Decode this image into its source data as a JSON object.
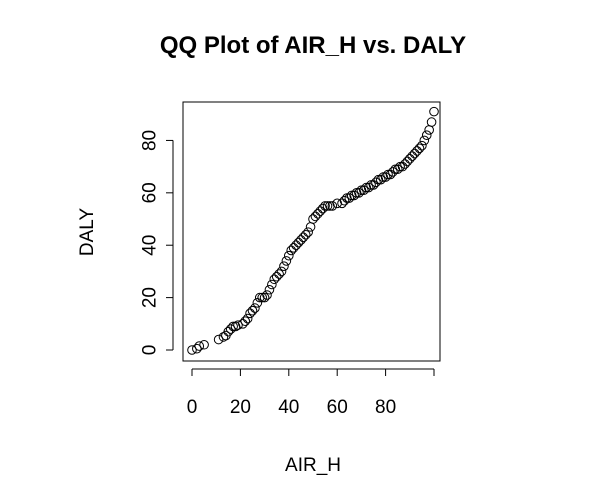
{
  "chart_data": {
    "type": "scatter",
    "title": "QQ Plot of AIR_H vs. DALY",
    "xlabel": "AIR_H",
    "ylabel": "DALY",
    "xlim": [
      0,
      100
    ],
    "ylim": [
      0,
      92
    ],
    "xticks": [
      0,
      20,
      40,
      60,
      80
    ],
    "yticks": [
      0,
      20,
      40,
      60,
      80
    ],
    "marker": "open-circle",
    "grid": false,
    "series": [
      {
        "x": [
          0,
          2,
          3,
          5,
          11,
          13,
          14,
          15,
          16,
          17,
          18,
          19,
          21,
          22,
          23,
          24,
          25,
          26,
          27,
          28,
          29,
          30,
          31,
          32,
          33,
          34,
          35,
          36,
          37,
          38,
          39,
          40,
          41,
          42,
          43,
          44,
          45,
          46,
          47,
          48,
          49,
          50,
          51,
          52,
          53,
          54,
          55,
          56,
          57,
          58,
          60,
          62,
          63,
          64,
          65,
          66,
          67,
          68,
          69,
          70,
          71,
          72,
          73,
          74,
          75,
          76,
          77,
          78,
          79,
          80,
          81,
          82,
          83,
          84,
          85,
          86,
          87,
          88,
          89,
          90,
          91,
          92,
          93,
          94,
          95,
          96,
          97,
          98,
          99,
          100
        ],
        "y": [
          0,
          0.5,
          1.5,
          2,
          4,
          5,
          5.5,
          7,
          8,
          9,
          9,
          9.5,
          10,
          11,
          12,
          14,
          15,
          16,
          18,
          20,
          20,
          20,
          21,
          23,
          25,
          27,
          28,
          29,
          30,
          32,
          34,
          36,
          38,
          39,
          40,
          41,
          42,
          43,
          44,
          45,
          47,
          50,
          51,
          52,
          53,
          54,
          55,
          55,
          55,
          55,
          56,
          56,
          57,
          58,
          58,
          59,
          59,
          60,
          60,
          61,
          61,
          62,
          62,
          63,
          63,
          64,
          65,
          65,
          66,
          66,
          67,
          67,
          68,
          69,
          69,
          70,
          70,
          71,
          72,
          73,
          74,
          75,
          76,
          77,
          78,
          80,
          82,
          84,
          87,
          91
        ]
      }
    ]
  }
}
